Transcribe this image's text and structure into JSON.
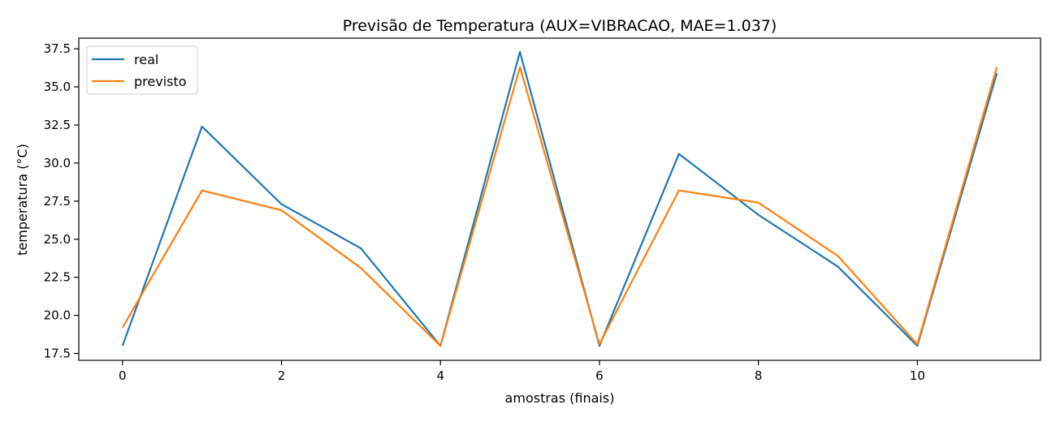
{
  "chart_data": {
    "type": "line",
    "title": "Previsão de Temperatura (AUX=VIBRACAO, MAE=1.037)",
    "xlabel": "amostras (finais)",
    "ylabel": "temperatura (°C)",
    "x": [
      0,
      1,
      2,
      3,
      4,
      5,
      6,
      7,
      8,
      9,
      10,
      11
    ],
    "xlim": [
      -0.55,
      11.55
    ],
    "ylim": [
      17.05,
      38.2
    ],
    "xticks": [
      0,
      2,
      4,
      6,
      8,
      10
    ],
    "xtick_labels": [
      "0",
      "2",
      "4",
      "6",
      "8",
      "10"
    ],
    "yticks": [
      17.5,
      20.0,
      22.5,
      25.0,
      27.5,
      30.0,
      32.5,
      35.0,
      37.5
    ],
    "ytick_labels": [
      "17.5",
      "20.0",
      "22.5",
      "25.0",
      "27.5",
      "30.0",
      "32.5",
      "35.0",
      "37.5"
    ],
    "grid": false,
    "legend_position": "top-left",
    "series": [
      {
        "name": "real",
        "color": "#1f77b4",
        "values": [
          18.0,
          32.4,
          27.3,
          24.4,
          18.0,
          37.3,
          18.0,
          30.6,
          26.6,
          23.2,
          18.0,
          35.9
        ]
      },
      {
        "name": "previsto",
        "color": "#ff7f0e",
        "values": [
          19.2,
          28.2,
          26.9,
          23.1,
          18.0,
          36.3,
          18.1,
          28.2,
          27.4,
          23.9,
          18.1,
          36.3
        ]
      }
    ]
  }
}
